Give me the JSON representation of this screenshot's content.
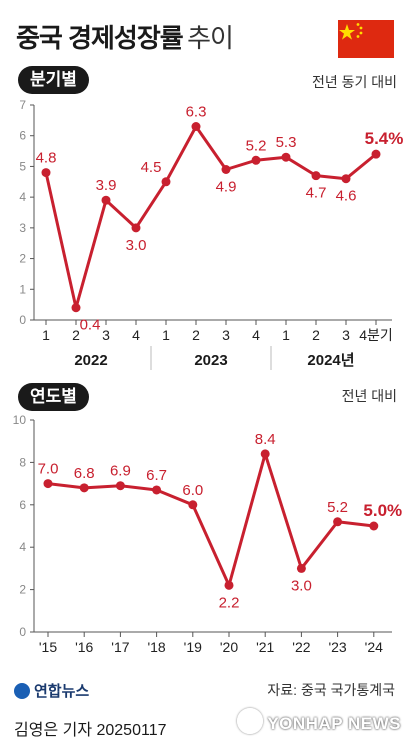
{
  "header": {
    "title_bold": "중국 경제성장률",
    "title_light": "추이"
  },
  "flag": {
    "country": "China",
    "colors": {
      "field": "#de2910",
      "star": "#ffde00"
    }
  },
  "colors": {
    "line": "#c8202f",
    "axis": "#555555",
    "grid": "#dddddd"
  },
  "chart_data": [
    {
      "type": "line",
      "badge": "분기별",
      "unit": "전년 동기 대비",
      "x": [
        "1",
        "2",
        "3",
        "4",
        "1",
        "2",
        "3",
        "4",
        "1",
        "2",
        "3",
        "4분기"
      ],
      "year_groups": [
        "2022",
        "2023",
        "2024년"
      ],
      "values": [
        4.8,
        0.4,
        3.9,
        3.0,
        4.5,
        6.3,
        4.9,
        5.2,
        5.3,
        4.7,
        4.6,
        5.4
      ],
      "value_labels": [
        "4.8",
        "0.4",
        "3.9",
        "3.0",
        "4.5",
        "6.3",
        "4.9",
        "5.2",
        "5.3",
        "4.7",
        "4.6",
        "5.4%"
      ],
      "y_ticks": [
        "0",
        "1",
        "2",
        "3",
        "4",
        "5",
        "6",
        "7"
      ],
      "ylim": [
        0,
        7
      ],
      "grid": false
    },
    {
      "type": "line",
      "badge": "연도별",
      "unit": "전년 대비",
      "x": [
        "'15",
        "'16",
        "'17",
        "'18",
        "'19",
        "'20",
        "'21",
        "'22",
        "'23",
        "'24"
      ],
      "values": [
        7.0,
        6.8,
        6.9,
        6.7,
        6.0,
        2.2,
        8.4,
        3.0,
        5.2,
        5.0
      ],
      "value_labels": [
        "7.0",
        "6.8",
        "6.9",
        "6.7",
        "6.0",
        "2.2",
        "8.4",
        "3.0",
        "5.2",
        "5.0%"
      ],
      "y_ticks": [
        "0",
        "2",
        "4",
        "6",
        "8",
        "10"
      ],
      "ylim": [
        0,
        10
      ],
      "grid": false
    }
  ],
  "footer": {
    "logo_text": "연합뉴스",
    "source": "자료: 중국 국가통계국",
    "byline": "김영은 기자  20250117",
    "watermark": "YONHAP NEWS"
  }
}
